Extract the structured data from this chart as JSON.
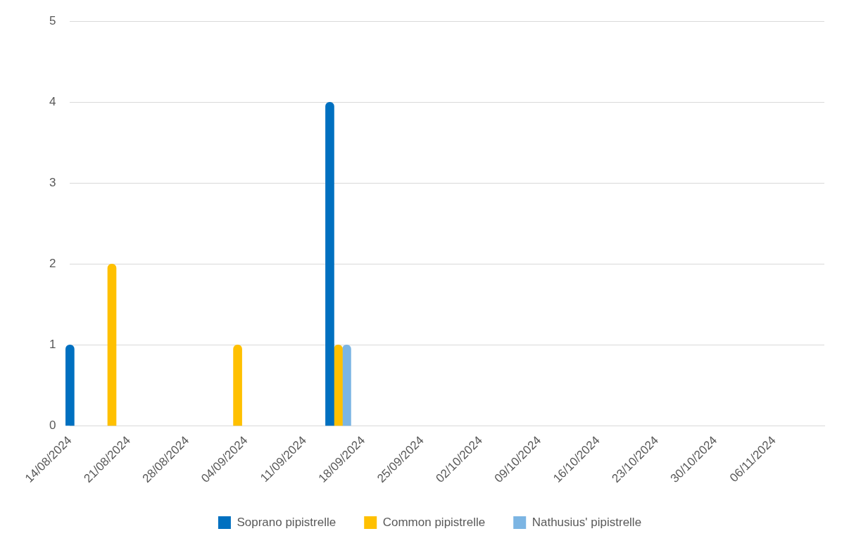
{
  "chart_data": {
    "type": "bar",
    "xlim": [
      "2024-08-14",
      "2024-11-12"
    ],
    "xticks": [
      {
        "value": "2024-08-14",
        "label": "14/08/2024"
      },
      {
        "value": "2024-08-21",
        "label": "21/08/2024"
      },
      {
        "value": "2024-08-28",
        "label": "28/08/2024"
      },
      {
        "value": "2024-09-04",
        "label": "04/09/2024"
      },
      {
        "value": "2024-09-11",
        "label": "11/09/2024"
      },
      {
        "value": "2024-09-18",
        "label": "18/09/2024"
      },
      {
        "value": "2024-09-25",
        "label": "25/09/2024"
      },
      {
        "value": "2024-10-02",
        "label": "02/10/2024"
      },
      {
        "value": "2024-10-09",
        "label": "09/10/2024"
      },
      {
        "value": "2024-10-16",
        "label": "16/10/2024"
      },
      {
        "value": "2024-10-23",
        "label": "23/10/2024"
      },
      {
        "value": "2024-10-30",
        "label": "30/10/2024"
      },
      {
        "value": "2024-11-06",
        "label": "06/11/2024"
      }
    ],
    "ylim": [
      0,
      5
    ],
    "yticks": [
      0,
      1,
      2,
      3,
      4,
      5
    ],
    "grid": "y",
    "legend": "bottom",
    "series": [
      {
        "name": "Soprano pipistrelle",
        "color": "#0070c0",
        "x": [
          "2024-08-15",
          "2024-09-15"
        ],
        "values": [
          1,
          4
        ]
      },
      {
        "name": "Common pipistrelle",
        "color": "#ffc000",
        "x": [
          "2024-08-19",
          "2024-09-03",
          "2024-09-15"
        ],
        "values": [
          2,
          1,
          1
        ]
      },
      {
        "name": "Nathusius' pipistrelle",
        "color": "#7cb5e3",
        "x": [
          "2024-09-15"
        ],
        "values": [
          1
        ]
      }
    ]
  }
}
